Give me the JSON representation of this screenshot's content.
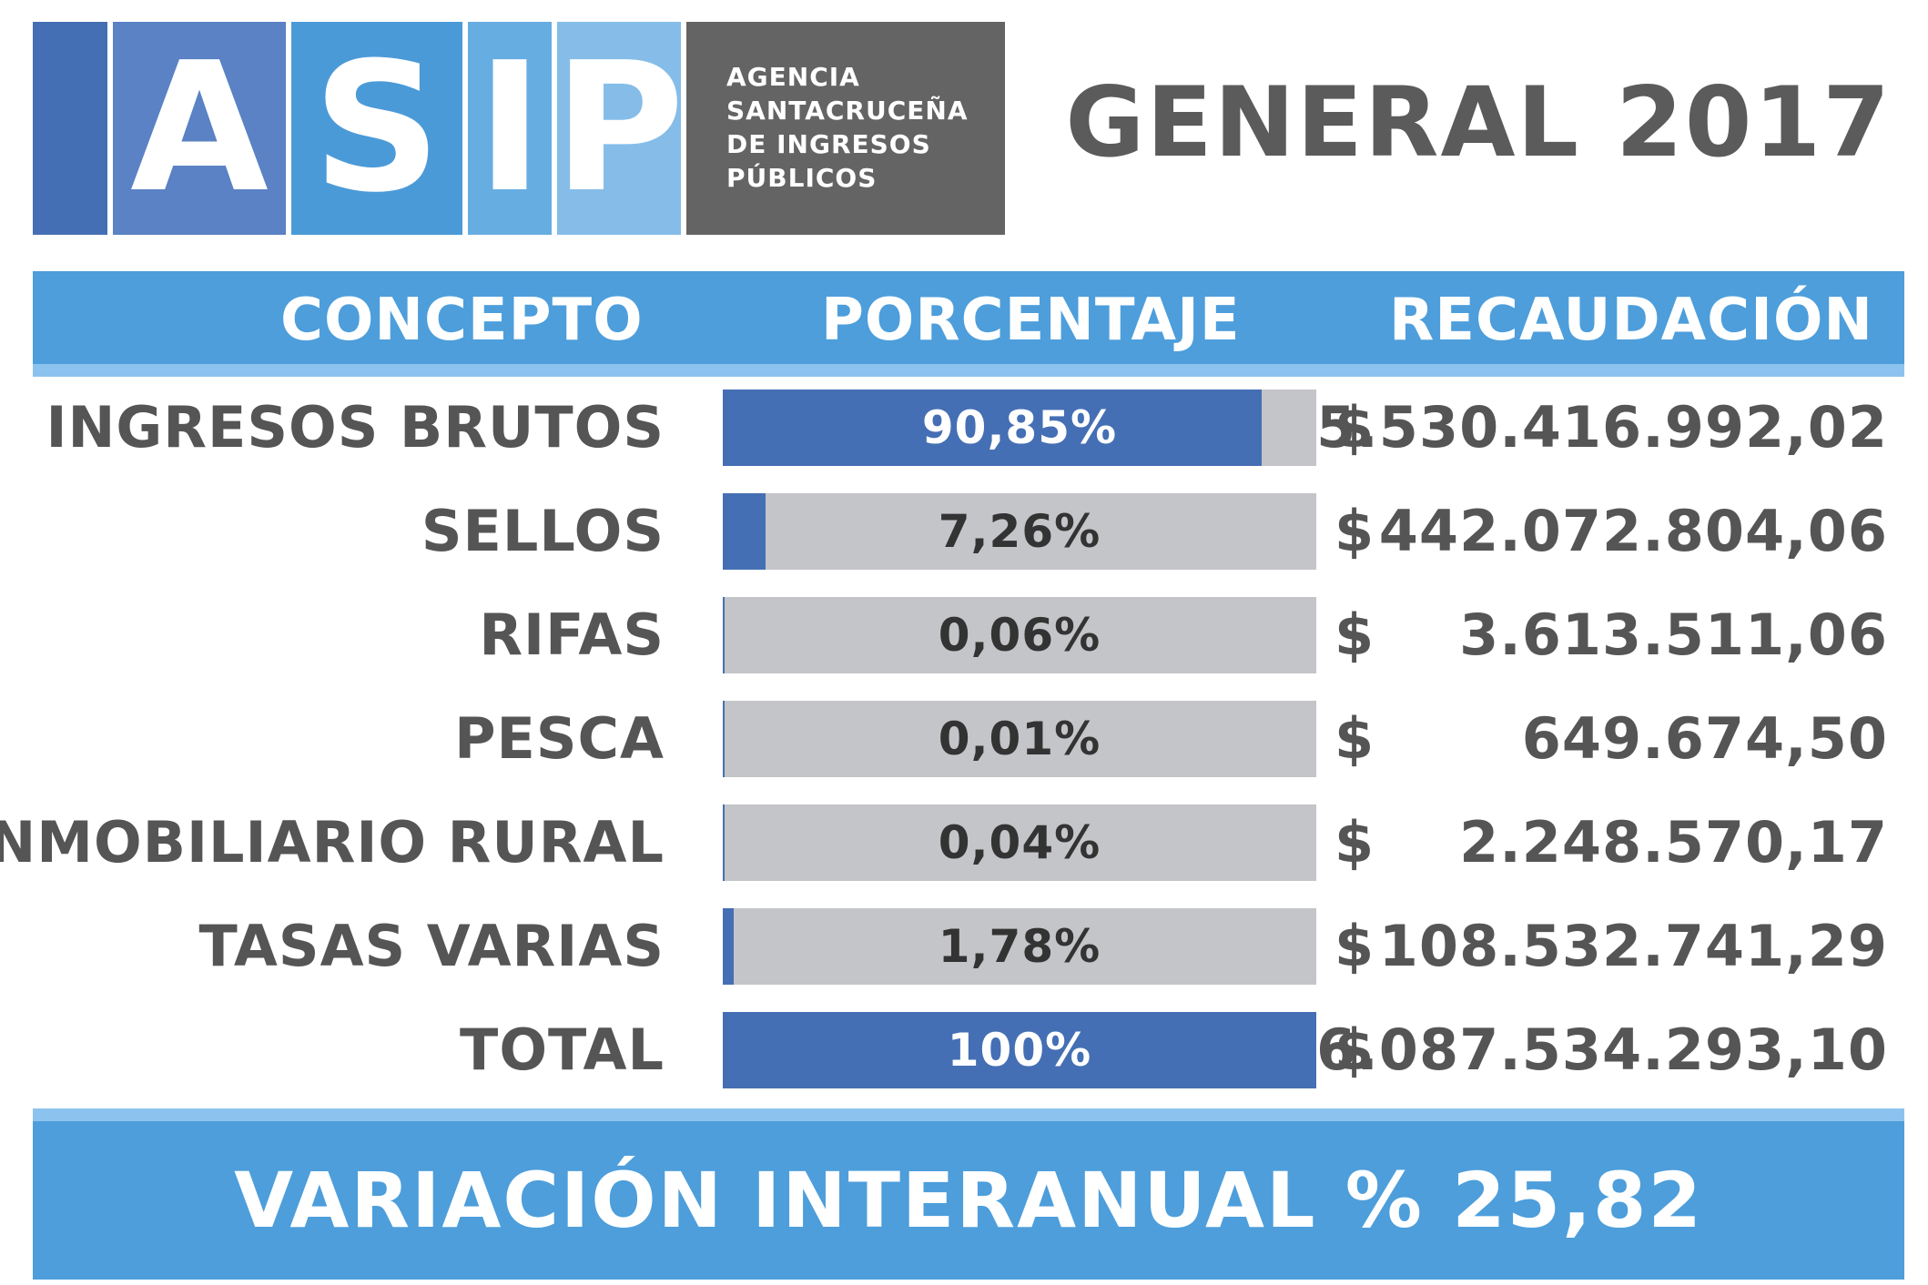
{
  "logo": {
    "letters": [
      "A",
      "S",
      "I",
      "P"
    ],
    "agency_lines": [
      "AGENCIA",
      "SANTACRUCEÑA",
      "DE INGRESOS",
      "PÚBLICOS"
    ]
  },
  "title": "GENERAL 2017",
  "table": {
    "headers": [
      "CONCEPTO",
      "PORCENTAJE",
      "RECAUDACIÓN"
    ],
    "currency_symbol": "$"
  },
  "chart_data": {
    "type": "bar",
    "categories": [
      "INGRESOS BRUTOS",
      "SELLOS",
      "RIFAS",
      "PESCA",
      "INMOBILIARIO RURAL",
      "TASAS VARIAS",
      "TOTAL"
    ],
    "values": [
      90.85,
      7.26,
      0.06,
      0.01,
      0.04,
      1.78,
      100
    ],
    "value_labels": [
      "90,85%",
      "7,26%",
      "0,06%",
      "0,01%",
      "0,04%",
      "1,78%",
      "100%"
    ],
    "amounts": [
      "5.530.416.992,02",
      "442.072.804,06",
      "3.613.511,06",
      "649.674,50",
      "2.248.570,17",
      "108.532.741,29",
      "6.087.534.293,10"
    ],
    "ylim": [
      0,
      100
    ]
  },
  "footer": {
    "label": "VARIACIÓN INTERANUAL % 25,82"
  },
  "colors": {
    "bar_fill": "#456fb4",
    "bar_track": "#c4c5c9",
    "header_blue": "#4d9edb",
    "header_light": "#8cc3ee",
    "text_gray": "#555555"
  }
}
